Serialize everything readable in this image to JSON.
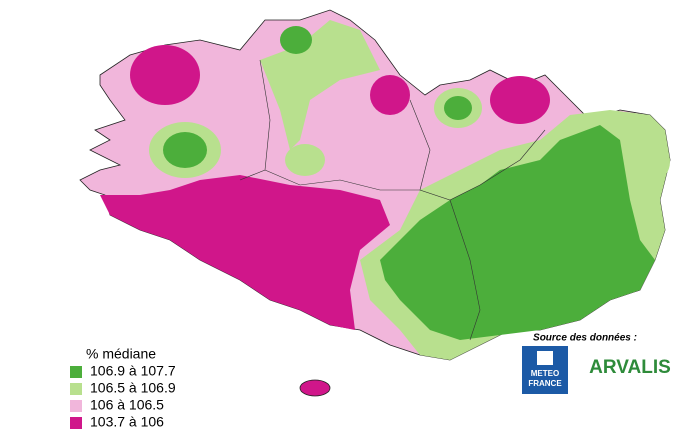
{
  "legend": {
    "title": "% médiane",
    "items": [
      {
        "label": "106.9  à  107.7",
        "color": "#4cae3b"
      },
      {
        "label": "106.5  à  106.9",
        "color": "#b8e08e"
      },
      {
        "label": "106  à  106.5",
        "color": "#f1b6db"
      },
      {
        "label": "103.7  à  106",
        "color": "#d0168a"
      }
    ]
  },
  "source": {
    "title": "Source des données :",
    "logo1": [
      "METEO",
      "FRANCE"
    ],
    "logo2": "ARVALIS"
  }
}
